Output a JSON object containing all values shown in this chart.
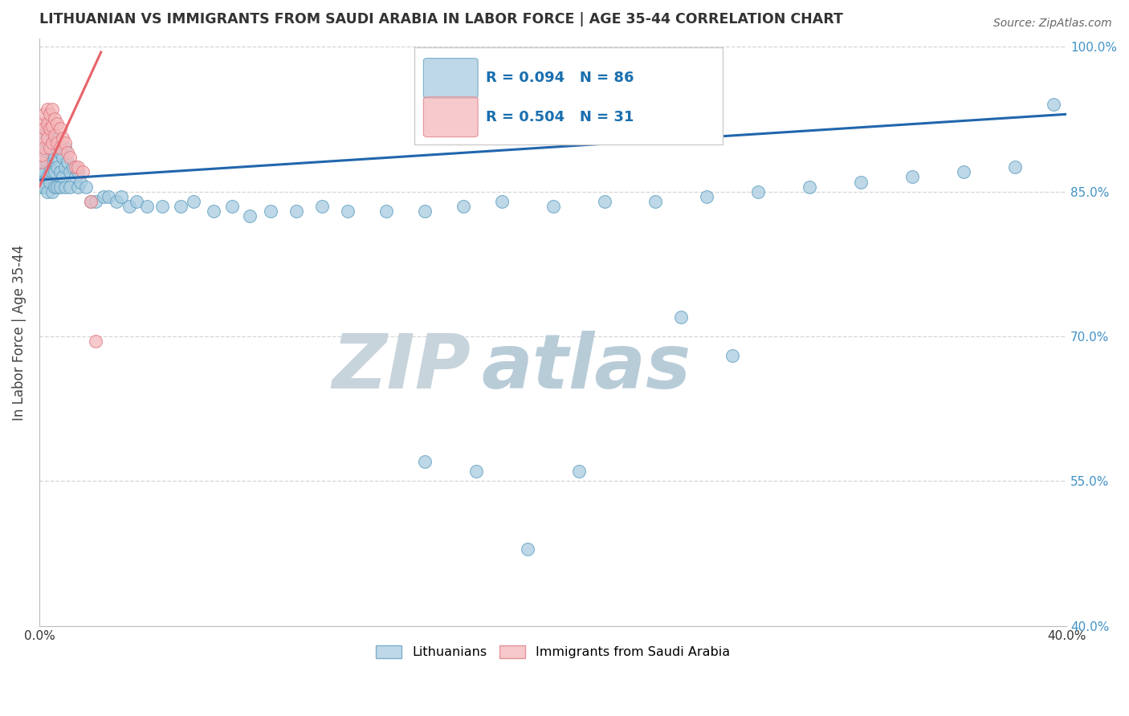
{
  "title": "LITHUANIAN VS IMMIGRANTS FROM SAUDI ARABIA IN LABOR FORCE | AGE 35-44 CORRELATION CHART",
  "source": "Source: ZipAtlas.com",
  "ylabel": "In Labor Force | Age 35-44",
  "xmin": 0.0,
  "xmax": 0.4,
  "ymin": 0.4,
  "ymax": 1.008,
  "blue_color": "#a8cce0",
  "blue_edge_color": "#5b9dc0",
  "pink_color": "#f4b8bb",
  "pink_edge_color": "#e07880",
  "blue_line_color": "#2166ac",
  "pink_line_color": "#e8636a",
  "watermark_color": "#d0dfe8",
  "grid_color": "#cccccc",
  "title_color": "#333333",
  "right_tick_color": "#4292c6",
  "legend_blue_label": "Lithuanians",
  "legend_pink_label": "Immigrants from Saudi Arabia",
  "R_blue": 0.094,
  "N_blue": 86,
  "R_pink": 0.504,
  "N_pink": 31,
  "blue_x": [
    0.001,
    0.001,
    0.001,
    0.001,
    0.001,
    0.002,
    0.002,
    0.002,
    0.002,
    0.003,
    0.003,
    0.003,
    0.003,
    0.003,
    0.004,
    0.004,
    0.004,
    0.004,
    0.005,
    0.005,
    0.005,
    0.005,
    0.006,
    0.006,
    0.006,
    0.006,
    0.007,
    0.007,
    0.007,
    0.008,
    0.008,
    0.008,
    0.009,
    0.009,
    0.01,
    0.01,
    0.01,
    0.011,
    0.012,
    0.012,
    0.013,
    0.014,
    0.015,
    0.015,
    0.016,
    0.018,
    0.02,
    0.022,
    0.025,
    0.027,
    0.03,
    0.032,
    0.035,
    0.038,
    0.042,
    0.048,
    0.055,
    0.06,
    0.068,
    0.075,
    0.082,
    0.09,
    0.1,
    0.11,
    0.12,
    0.135,
    0.15,
    0.165,
    0.18,
    0.2,
    0.22,
    0.24,
    0.26,
    0.28,
    0.3,
    0.32,
    0.34,
    0.36,
    0.38,
    0.395,
    0.25,
    0.27,
    0.15,
    0.17,
    0.19,
    0.21
  ],
  "blue_y": [
    0.87,
    0.88,
    0.89,
    0.86,
    0.855,
    0.91,
    0.885,
    0.87,
    0.855,
    0.92,
    0.9,
    0.88,
    0.865,
    0.85,
    0.915,
    0.895,
    0.875,
    0.86,
    0.91,
    0.89,
    0.87,
    0.85,
    0.905,
    0.885,
    0.87,
    0.855,
    0.895,
    0.875,
    0.855,
    0.89,
    0.87,
    0.855,
    0.885,
    0.865,
    0.895,
    0.875,
    0.855,
    0.88,
    0.87,
    0.855,
    0.875,
    0.865,
    0.87,
    0.855,
    0.86,
    0.855,
    0.84,
    0.84,
    0.845,
    0.845,
    0.84,
    0.845,
    0.835,
    0.84,
    0.835,
    0.835,
    0.835,
    0.84,
    0.83,
    0.835,
    0.825,
    0.83,
    0.83,
    0.835,
    0.83,
    0.83,
    0.83,
    0.835,
    0.84,
    0.835,
    0.84,
    0.84,
    0.845,
    0.85,
    0.855,
    0.86,
    0.865,
    0.87,
    0.875,
    0.94,
    0.72,
    0.68,
    0.57,
    0.56,
    0.48,
    0.56
  ],
  "pink_x": [
    0.0005,
    0.001,
    0.001,
    0.001,
    0.002,
    0.002,
    0.002,
    0.003,
    0.003,
    0.003,
    0.004,
    0.004,
    0.004,
    0.005,
    0.005,
    0.005,
    0.006,
    0.006,
    0.007,
    0.007,
    0.008,
    0.008,
    0.009,
    0.01,
    0.011,
    0.012,
    0.014,
    0.015,
    0.017,
    0.02,
    0.022
  ],
  "pink_y": [
    0.88,
    0.92,
    0.905,
    0.888,
    0.93,
    0.915,
    0.895,
    0.935,
    0.92,
    0.905,
    0.93,
    0.915,
    0.895,
    0.935,
    0.918,
    0.9,
    0.925,
    0.908,
    0.92,
    0.9,
    0.915,
    0.895,
    0.905,
    0.9,
    0.89,
    0.885,
    0.875,
    0.875,
    0.87,
    0.84,
    0.695
  ]
}
